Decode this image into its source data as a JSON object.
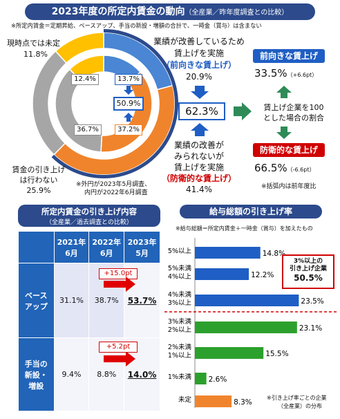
{
  "header": {
    "title": "2023年度の所定内賃金の動向",
    "title_sub": "（全産業／昨年度調査との比較）",
    "note": "※所定内賃金＝定期昇給、ベースアップ、手当の新設・増額の合計で、一時金（賞与）は含まない"
  },
  "donut": {
    "undecided_label": "現時点では未定",
    "undecided_value": "11.8%",
    "no_raise_label_1": "賃金の引き上げ",
    "no_raise_label_2": "は行わない",
    "no_raise_value": "25.9%",
    "inner_yellow": "12.4%",
    "inner_blue": "13.7%",
    "inner_gray": "36.7%",
    "inner_orange": "37.2%",
    "center_value": "50.9%",
    "footnote_1": "※外円が2023年5月調査、",
    "footnote_2": "内円が2022年6月調査",
    "colors": {
      "blue": "#4a86d4",
      "orange": "#f0842c",
      "gray": "#a6a6a6",
      "yellow": "#ffc000",
      "navy": "#2c4a8c"
    }
  },
  "callout": {
    "pos_l1": "業績が改善しているため",
    "pos_l2": "賃上げを実施",
    "pos_l3": "（前向きな賃上げ）",
    "pos_value": "20.9%",
    "total": "62.3%",
    "neg_l1": "業績の改善が",
    "neg_l2": "みられないが",
    "neg_l3": "賃上げを実施",
    "neg_l4": "（防衛的な賃上げ）",
    "neg_value": "41.4%",
    "pos_tag": "前向きな賃上げ",
    "pos_share": "33.5%",
    "pos_diff": "（+6.6pt）",
    "mid_l1": "賃上げ企業を100",
    "mid_l2": "とした場合の割合",
    "neg_tag": "防衛的な賃上げ",
    "neg_share": "66.5%",
    "neg_diff": "（-6.6pt）",
    "note": "※括弧内は前年度比"
  },
  "left_section": {
    "title": "所定内賃金の引き上げ内容",
    "subtitle": "（全産業／過去調査との比較）",
    "col_headers": [
      "2021年\n6月",
      "2022年\n6月",
      "2023年\n5月"
    ],
    "rows": [
      {
        "label": "ベース\nアップ",
        "values": [
          "31.1%",
          "38.7%",
          "53.7%"
        ],
        "diff": "+15.0pt"
      },
      {
        "label": "手当の\n新設・\n増設",
        "values": [
          "9.4%",
          "8.8%",
          "14.0%"
        ],
        "diff": "+5.2pt"
      }
    ]
  },
  "right_section": {
    "title": "給与総額の引き上げ率",
    "note": "※給与総額＝所定内賃金＋一時金（賞与）を加えたもの",
    "highlight_l1": "3%以上の",
    "highlight_l2": "引き上げ企業",
    "highlight_value": "50.5%",
    "footnote_1": "※引き上げ率ごとの企業",
    "footnote_2": "（全産業）の分布"
  },
  "chart_data": [
    {
      "type": "pie",
      "title": "2023年度の所定内賃金の動向",
      "series": [
        {
          "name": "外円 2023年5月調査",
          "labels": [
            "前向きな賃上げ",
            "防衛的な賃上げ",
            "賃金の引き上げは行わない",
            "現時点では未定"
          ],
          "values": [
            20.9,
            41.4,
            25.9,
            11.8
          ]
        },
        {
          "name": "内円 2022年6月調査",
          "labels": [
            "前向きな賃上げ",
            "防衛的な賃上げ",
            "賃金の引き上げは行わない",
            "現時点では未定"
          ],
          "values": [
            13.7,
            37.2,
            36.7,
            12.4
          ]
        }
      ]
    },
    {
      "type": "table",
      "title": "所定内賃金の引き上げ内容",
      "columns": [
        "2021年6月",
        "2022年6月",
        "2023年5月"
      ],
      "rows": [
        {
          "name": "ベースアップ",
          "values": [
            31.1,
            38.7,
            53.7
          ]
        },
        {
          "name": "手当の新設・増設",
          "values": [
            9.4,
            8.8,
            14.0
          ]
        }
      ]
    },
    {
      "type": "bar",
      "title": "給与総額の引き上げ率",
      "categories": [
        "5%以上",
        "5%未満\n4%以上",
        "4%未満\n3%以上",
        "3%未満\n2%以上",
        "2%未満\n1%以上",
        "1%未満",
        "未定"
      ],
      "values": [
        14.8,
        12.2,
        23.5,
        23.1,
        15.5,
        2.6,
        8.3
      ],
      "value_labels": [
        "14.8%",
        "12.2%",
        "23.5%",
        "23.1%",
        "15.5%",
        "2.6%",
        "8.3%"
      ],
      "colors": [
        "#1f5ec4",
        "#1f5ec4",
        "#1f5ec4",
        "#2ca02c",
        "#2ca02c",
        "#2ca02c",
        "#f0842c"
      ],
      "xlim": [
        0,
        25
      ]
    }
  ]
}
